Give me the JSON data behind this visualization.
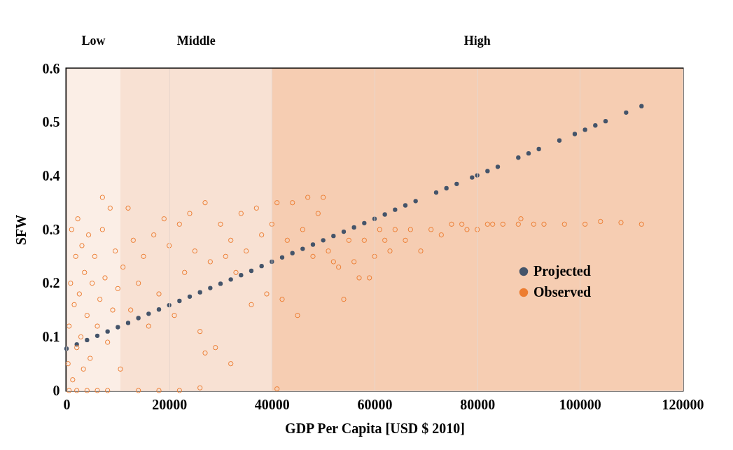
{
  "chart_data": {
    "type": "scatter",
    "xlabel": "GDP Per Capita [USD $ 2010]",
    "ylabel": "SFW",
    "xlim": [
      0,
      120000
    ],
    "xticks": [
      0,
      20000,
      40000,
      60000,
      80000,
      100000,
      120000
    ],
    "ylim": [
      0,
      0.6
    ],
    "yticks": [
      0,
      0.1,
      0.2,
      0.3,
      0.4,
      0.5,
      0.6
    ],
    "grid": true,
    "legend": "bottom right",
    "marker": "circle",
    "bands": [
      {
        "axis": "x",
        "from": 0,
        "to": 10500,
        "label": "Low",
        "color": "#fbeee6"
      },
      {
        "axis": "x",
        "from": 10500,
        "to": 40000,
        "label": "Middle",
        "color": "#f8e1d3"
      },
      {
        "axis": "x",
        "from": 40000,
        "to": 120000,
        "label": "High",
        "color": "#f6cdb2"
      }
    ],
    "series": [
      {
        "name": "Projected",
        "color": "#44546a",
        "x": [
          0,
          2000,
          4000,
          6000,
          8000,
          10000,
          12000,
          14000,
          16000,
          18000,
          20000,
          22000,
          24000,
          26000,
          28000,
          30000,
          32000,
          34000,
          36000,
          38000,
          40000,
          42000,
          44000,
          46000,
          48000,
          50000,
          52000,
          54000,
          56000,
          58000,
          60000,
          62000,
          64000,
          66000,
          68000,
          72000,
          74000,
          76000,
          79000,
          80000,
          82000,
          84000,
          88000,
          90000,
          92000,
          96000,
          99000,
          101000,
          103000,
          105000,
          109000,
          112000
        ],
        "values": [
          0.078,
          0.086,
          0.094,
          0.102,
          0.11,
          0.118,
          0.126,
          0.135,
          0.143,
          0.151,
          0.159,
          0.167,
          0.175,
          0.183,
          0.191,
          0.199,
          0.207,
          0.215,
          0.223,
          0.232,
          0.24,
          0.248,
          0.256,
          0.264,
          0.272,
          0.28,
          0.288,
          0.296,
          0.304,
          0.312,
          0.32,
          0.328,
          0.337,
          0.345,
          0.353,
          0.369,
          0.377,
          0.385,
          0.397,
          0.401,
          0.409,
          0.417,
          0.434,
          0.442,
          0.45,
          0.466,
          0.478,
          0.486,
          0.494,
          0.502,
          0.518,
          0.53
        ]
      },
      {
        "name": "Observed",
        "color": "#ed7d31",
        "x": [
          500,
          2000,
          4000,
          6000,
          8000,
          14000,
          18000,
          22000,
          26000,
          41000,
          300,
          500,
          800,
          1000,
          1200,
          1500,
          1800,
          2000,
          2200,
          2500,
          2800,
          3000,
          3300,
          3500,
          4000,
          4300,
          4600,
          5000,
          5500,
          6000,
          6500,
          7000,
          7000,
          7500,
          8000,
          8500,
          9000,
          9500,
          10000,
          10500,
          11000,
          12000,
          12500,
          13000,
          14000,
          15000,
          16000,
          17000,
          18000,
          19000,
          20000,
          21000,
          22000,
          23000,
          24000,
          25000,
          26000,
          27000,
          27000,
          28000,
          29000,
          30000,
          31000,
          32000,
          32000,
          33000,
          34000,
          35000,
          36000,
          37000,
          38000,
          39000,
          40000,
          41000,
          42000,
          43000,
          44000,
          45000,
          46000,
          47000,
          48000,
          49000,
          50000,
          51000,
          52000,
          53000,
          54000,
          55000,
          56000,
          57000,
          58000,
          59000,
          60000,
          61000,
          62000,
          63000,
          64000,
          66000,
          67000,
          69000,
          71000,
          73000,
          75000,
          77000,
          78000,
          80000,
          82000,
          83000,
          85000,
          88000,
          88500,
          91000,
          93000,
          97000,
          101000,
          104000,
          108000,
          112000
        ],
        "values": [
          0,
          0,
          0,
          0,
          0,
          0,
          0,
          0,
          0.005,
          0.003,
          0.05,
          0.12,
          0.2,
          0.3,
          0.02,
          0.16,
          0.25,
          0.08,
          0.32,
          0.18,
          0.1,
          0.27,
          0.04,
          0.22,
          0.14,
          0.29,
          0.06,
          0.2,
          0.25,
          0.12,
          0.17,
          0.3,
          0.36,
          0.21,
          0.09,
          0.34,
          0.15,
          0.26,
          0.19,
          0.04,
          0.23,
          0.34,
          0.15,
          0.28,
          0.2,
          0.25,
          0.12,
          0.29,
          0.18,
          0.32,
          0.27,
          0.14,
          0.31,
          0.22,
          0.33,
          0.26,
          0.11,
          0.35,
          0.07,
          0.24,
          0.08,
          0.31,
          0.25,
          0.05,
          0.28,
          0.22,
          0.33,
          0.26,
          0.16,
          0.34,
          0.29,
          0.18,
          0.31,
          0.35,
          0.17,
          0.28,
          0.35,
          0.14,
          0.3,
          0.36,
          0.25,
          0.33,
          0.36,
          0.26,
          0.24,
          0.23,
          0.17,
          0.28,
          0.24,
          0.21,
          0.28,
          0.21,
          0.25,
          0.3,
          0.28,
          0.26,
          0.3,
          0.28,
          0.3,
          0.26,
          0.3,
          0.29,
          0.31,
          0.31,
          0.3,
          0.3,
          0.31,
          0.31,
          0.31,
          0.31,
          0.32,
          0.31,
          0.31,
          0.31,
          0.31,
          0.315,
          0.313,
          0.31
        ]
      }
    ]
  }
}
